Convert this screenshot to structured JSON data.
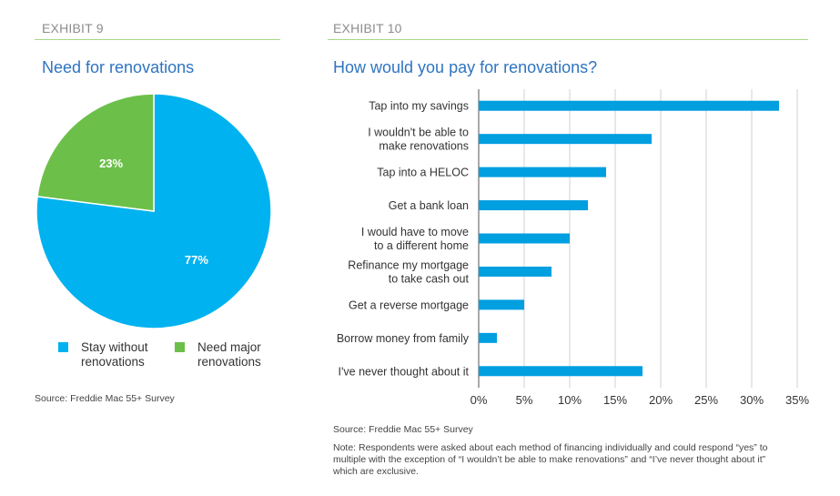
{
  "exhibit9": {
    "label": "EXHIBIT 9",
    "title": "Need for renovations",
    "source": "Source: Freddie Mac 55+ Survey",
    "legend": [
      {
        "line1": "Stay without",
        "line2": "renovations",
        "color": "#00b2ef"
      },
      {
        "line1": "Need major",
        "line2": "renovations",
        "color": "#6cc04a"
      }
    ]
  },
  "exhibit10": {
    "label": "EXHIBIT 10",
    "title": "How would you pay for renovations?",
    "source": "Source: Freddie Mac 55+ Survey",
    "note": "Note: Respondents were asked about each method of financing individually and could respond “yes” to multiple with the exception of “I wouldn’t be able to make renovations” and “I’ve never thought about it” which are exclusive."
  },
  "chart_data": [
    {
      "type": "pie",
      "title": "Need for renovations",
      "labels": [
        "Stay without renovations",
        "Need major renovations"
      ],
      "values": [
        77,
        23
      ],
      "data_labels": [
        "77%",
        "23%"
      ],
      "colors": [
        "#00b2ef",
        "#6cc04a"
      ],
      "legend": "bottom"
    },
    {
      "type": "bar",
      "orientation": "horizontal",
      "title": "How would you pay for renovations?",
      "categories": [
        [
          "Tap into my savings"
        ],
        [
          "I wouldn't be able to",
          "make renovations"
        ],
        [
          "Tap into a HELOC"
        ],
        [
          "Get a bank loan"
        ],
        [
          "I would have to move",
          "to a different home"
        ],
        [
          "Refinance my mortgage",
          "to take cash out"
        ],
        [
          "Get a reverse mortgage"
        ],
        [
          "Borrow money from family"
        ],
        [
          "I've never thought about it"
        ]
      ],
      "values": [
        33,
        19,
        14,
        12,
        10,
        8,
        5,
        2,
        18
      ],
      "xlim": [
        0,
        35
      ],
      "xticks": [
        "0%",
        "5%",
        "10%",
        "15%",
        "20%",
        "25%",
        "30%",
        "35%"
      ],
      "xtick_values": [
        0,
        5,
        10,
        15,
        20,
        25,
        30,
        35
      ],
      "grid": true,
      "color": "#009fe0",
      "xlabel": "",
      "ylabel": ""
    }
  ]
}
